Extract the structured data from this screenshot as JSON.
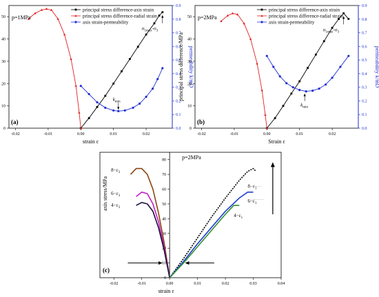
{
  "chart_data": [
    {
      "type": "line",
      "panel_label": "(a)",
      "annotation": "p=1MPa",
      "xlabel": "strain ε",
      "ylabel": "principal stress difference/MPa",
      "y2label": "permeability k/mD",
      "xlim": [
        -0.022,
        0.028
      ],
      "ylim": [
        0,
        55
      ],
      "y2lim": [
        0,
        0.9
      ],
      "xticks": [
        "-0.02",
        "-0.01",
        "0.00",
        "0.01",
        "0.02"
      ],
      "yticks": [
        "0",
        "10",
        "20",
        "30",
        "40",
        "50"
      ],
      "y2ticks": [
        "0.0",
        "0.1",
        "0.2",
        "0.3",
        "0.4",
        "0.5",
        "0.6",
        "0.7",
        "0.8",
        "0.9"
      ],
      "legend": [
        "principal stress difference-axis strain",
        "principal stress difference-radial strain",
        "axis strain-permeability"
      ],
      "labels": {
        "peak": "σ1max-σ3",
        "kmin": "kmin"
      },
      "series": [
        {
          "name": "principal stress difference-axis strain",
          "color": "#000000",
          "axis": "left",
          "x": [
            0,
            0.0025,
            0.005,
            0.0075,
            0.01,
            0.0125,
            0.015,
            0.0175,
            0.02,
            0.0225,
            0.024,
            0.025
          ],
          "y": [
            0,
            4.5,
            9.5,
            14.5,
            20,
            25.5,
            31,
            36.5,
            42,
            47,
            50.5,
            52
          ]
        },
        {
          "name": "principal stress difference-radial strain",
          "color": "#e02020",
          "axis": "left",
          "x": [
            -0.016,
            -0.014,
            -0.012,
            -0.0105,
            -0.009,
            -0.007,
            -0.005,
            -0.003,
            -0.0015,
            -0.0005,
            0
          ],
          "y": [
            49,
            51.5,
            53,
            53.5,
            53,
            49,
            42,
            31,
            19,
            7,
            0
          ]
        },
        {
          "name": "axis strain-permeability",
          "color": "#1f2fd0",
          "axis": "right",
          "x": [
            0,
            0.0025,
            0.005,
            0.0075,
            0.01,
            0.0115,
            0.0135,
            0.016,
            0.018,
            0.02,
            0.022,
            0.0235,
            0.025
          ],
          "y": [
            0.31,
            0.25,
            0.19,
            0.15,
            0.13,
            0.125,
            0.13,
            0.15,
            0.18,
            0.23,
            0.29,
            0.36,
            0.44
          ]
        }
      ]
    },
    {
      "type": "line",
      "panel_label": "(b)",
      "annotation": "p=2MPa",
      "xlabel": "Strain ε",
      "ylabel": "principal stress difference/MPa",
      "y2label": "permeability k/mD",
      "xlim": [
        -0.022,
        0.028
      ],
      "ylim": [
        0,
        55
      ],
      "y2lim": [
        0,
        0.9
      ],
      "xticks": [
        "-0.02",
        "-0.01",
        "0.00",
        "0.01",
        "0.02"
      ],
      "yticks": [
        "0",
        "10",
        "20",
        "30",
        "40",
        "50"
      ],
      "y2ticks": [
        "0.0",
        "0.1",
        "0.2",
        "0.3",
        "0.4",
        "0.5",
        "0.6",
        "0.7",
        "0.8",
        "0.9"
      ],
      "legend": [
        "principal stress difference-axis strain",
        "principal stress difference-radial strain",
        "axis strain-permeability"
      ],
      "labels": {
        "peak": "σ1max-σ3",
        "kmin": "kmin"
      },
      "series": [
        {
          "name": "principal stress difference-axis strain",
          "color": "#000000",
          "axis": "left",
          "x": [
            0,
            0.0025,
            0.005,
            0.0075,
            0.01,
            0.0125,
            0.015,
            0.0175,
            0.02,
            0.022,
            0.0235,
            0.025
          ],
          "y": [
            0,
            4.5,
            10,
            15.5,
            21,
            27,
            33,
            39,
            45,
            49,
            51.5,
            49
          ]
        },
        {
          "name": "principal stress difference-radial strain",
          "color": "#e02020",
          "axis": "left",
          "x": [
            -0.014,
            -0.012,
            -0.0105,
            -0.009,
            -0.007,
            -0.005,
            -0.003,
            -0.0015,
            -0.0005,
            0
          ],
          "y": [
            48,
            50.5,
            51.5,
            51,
            47,
            40,
            29,
            17,
            6,
            0
          ]
        },
        {
          "name": "axis strain-permeability",
          "color": "#1f2fd0",
          "axis": "right",
          "x": [
            0,
            0.002,
            0.004,
            0.006,
            0.008,
            0.01,
            0.012,
            0.014,
            0.016,
            0.018,
            0.02,
            0.0225,
            0.025
          ],
          "y": [
            0.53,
            0.45,
            0.38,
            0.33,
            0.3,
            0.28,
            0.27,
            0.275,
            0.29,
            0.32,
            0.37,
            0.45,
            0.53
          ]
        }
      ]
    },
    {
      "type": "line",
      "panel_label": "(c)",
      "annotation": "p=2MPa",
      "xlabel": "strain ε",
      "ylabel": "axis stress/MPa",
      "xlim": [
        -0.025,
        0.04
      ],
      "ylim": [
        0,
        85
      ],
      "xticks": [
        "-0.02",
        "-0.01",
        "0.00",
        "0.01",
        "0.02",
        "0.03",
        "0.04"
      ],
      "yticks": [
        "0",
        "10",
        "20",
        "30",
        "40",
        "50",
        "60",
        "70",
        "80"
      ],
      "labels": {
        "left": [
          "8−ε3",
          "6−ε3",
          "4−ε3"
        ],
        "right": [
          "8−ε1",
          "6−ε1",
          "4−ε1"
        ]
      },
      "series": [
        {
          "name": "8-ε3",
          "color": "#8b4513",
          "x": [
            -0.014,
            -0.012,
            -0.01,
            -0.008,
            -0.006,
            -0.004,
            -0.002,
            0
          ],
          "y": [
            70,
            74,
            74,
            70,
            60,
            44,
            24,
            0
          ]
        },
        {
          "name": "6-ε3",
          "color": "#c020c0",
          "x": [
            -0.012,
            -0.01,
            -0.008,
            -0.006,
            -0.004,
            -0.002,
            0
          ],
          "y": [
            55,
            58,
            57,
            50,
            38,
            21,
            0
          ]
        },
        {
          "name": "4-ε3",
          "color": "#1a0a3a",
          "x": [
            -0.012,
            -0.01,
            -0.008,
            -0.006,
            -0.004,
            -0.002,
            0
          ],
          "y": [
            49,
            51,
            50,
            45,
            34,
            19,
            0
          ]
        },
        {
          "name": "8-ε1",
          "color": "#000000",
          "x": [
            0,
            0.005,
            0.01,
            0.015,
            0.02,
            0.025,
            0.028,
            0.03,
            0.031
          ],
          "y": [
            0,
            13,
            27,
            41,
            54,
            66,
            72,
            74,
            72
          ]
        },
        {
          "name": "6-ε1",
          "color": "#1f3fd0",
          "x": [
            0,
            0.005,
            0.01,
            0.015,
            0.02,
            0.025,
            0.028,
            0.03
          ],
          "y": [
            0,
            11,
            23,
            34,
            45,
            54,
            58,
            58
          ]
        },
        {
          "name": "4-ε1",
          "color": "#2f8f2f",
          "x": [
            0,
            0.005,
            0.01,
            0.015,
            0.02,
            0.023,
            0.025
          ],
          "y": [
            0,
            10,
            21,
            32,
            43,
            49,
            49
          ]
        }
      ]
    }
  ]
}
